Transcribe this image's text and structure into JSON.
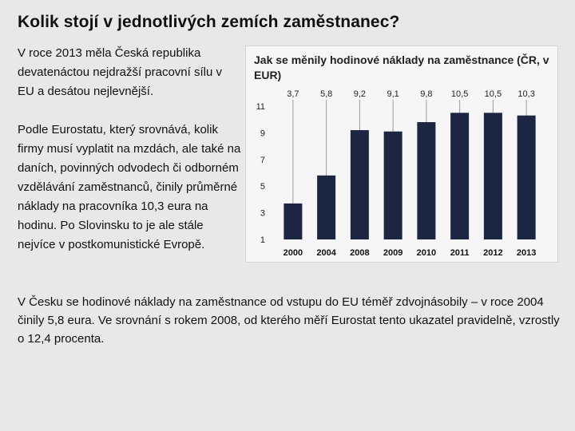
{
  "page": {
    "title": "Kolik stojí v jednotlivých zemích zaměstnanec?",
    "intro_paragraphs": [
      "V roce 2013 měla Česká republika devatenáctou nejdražší pracovní sílu v EU a desátou nejlevnější.",
      "Podle Eurostatu, který srovnává, kolik firmy musí vyplatit na mzdách, ale také na daních, povinných odvodech či odborném vzdělávání zaměstnanců, činily průměrné náklady na pracovníka 10,3 eura na hodinu. Po Slovinsku to je ale stále nejvíce v postkomunistické Evropě."
    ],
    "bottom_paragraph": "V Česku se hodinové náklady na zaměstnance od vstupu do EU téměř zdvojnásobily – v roce 2004 činily 5,8 eura. Ve srovnání s rokem 2008, od kterého měří Eurostat tento ukazatel pravidelně, vzrostly o 12,4 procenta."
  },
  "chart_data": {
    "type": "bar",
    "title": "Jak se měnily hodinové náklady na zaměstnance (ČR, v EUR)",
    "categories": [
      "2000",
      "2004",
      "2008",
      "2009",
      "2010",
      "2011",
      "2012",
      "2013"
    ],
    "values": [
      3.7,
      5.8,
      9.2,
      9.1,
      9.8,
      10.5,
      10.5,
      10.3
    ],
    "value_labels": [
      "3,7",
      "5,8",
      "9,2",
      "9,1",
      "9,8",
      "10,5",
      "10,5",
      "10,3"
    ],
    "yticks": [
      1,
      3,
      5,
      7,
      9,
      11
    ],
    "ylim": [
      1,
      11
    ],
    "xlabel": "",
    "ylabel": "",
    "grid": false,
    "colors": {
      "bar": "#1c2541",
      "leader": "#9a9a9a",
      "background": "#f6f6f6"
    }
  }
}
